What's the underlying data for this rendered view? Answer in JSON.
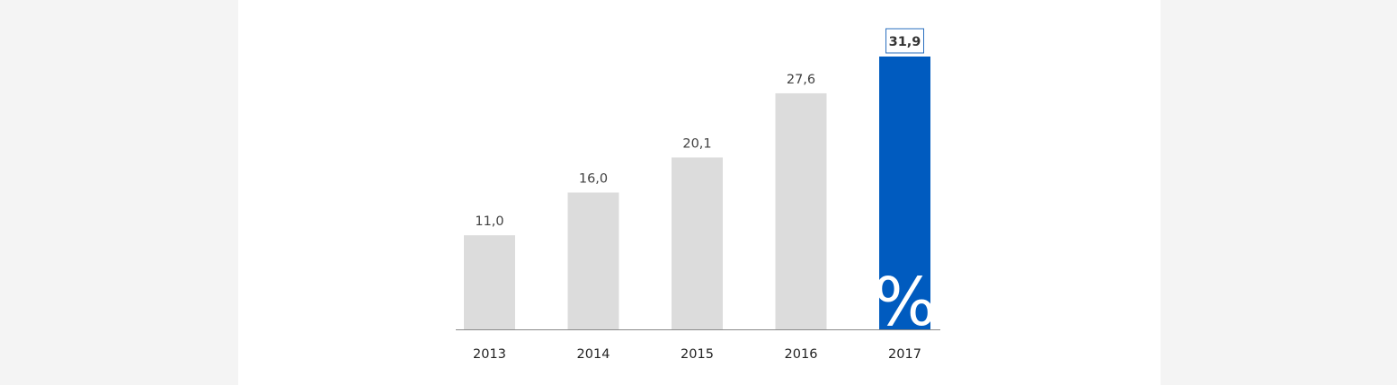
{
  "chart_data": {
    "type": "bar",
    "categories": [
      "2013",
      "2014",
      "2015",
      "2016",
      "2017"
    ],
    "values": [
      11.0,
      16.0,
      20.1,
      27.6,
      31.9
    ],
    "value_labels": [
      "11,0",
      "16,0",
      "20,1",
      "27,6",
      "31,9"
    ],
    "highlight_index": 4,
    "unit_mark": "%",
    "ylim": [
      0,
      31.9
    ],
    "grid": false,
    "colors": {
      "bar": "#dcdcdc",
      "highlight": "#005bbf",
      "axis": "#8a8a8a",
      "highlight_label_border": "#2a6fbf"
    }
  }
}
